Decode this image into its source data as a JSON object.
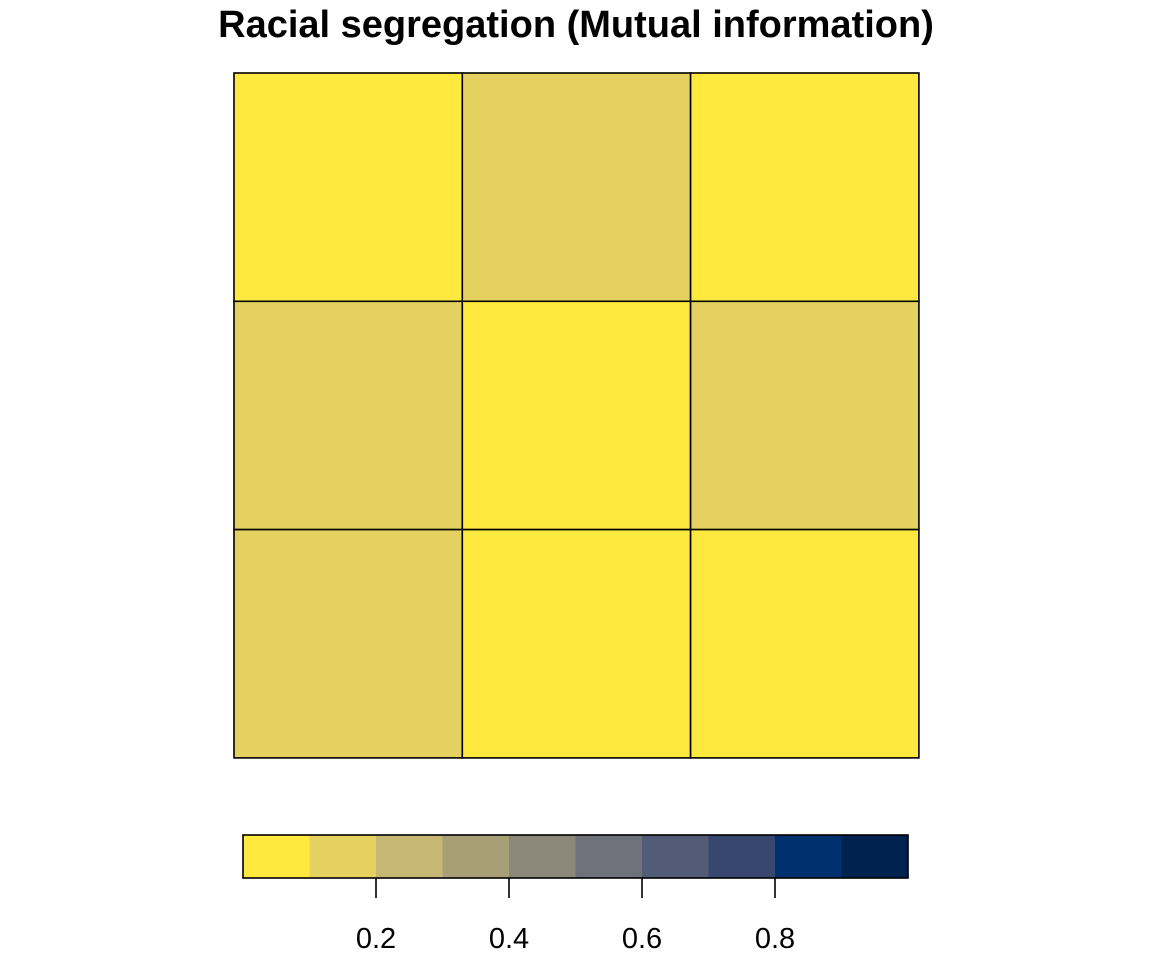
{
  "chart_data": {
    "type": "heatmap",
    "title": "Racial segregation (Mutual information)",
    "xlabel": "",
    "ylabel": "",
    "rows": 3,
    "cols": 3,
    "values": [
      [
        0.05,
        0.15,
        0.05
      ],
      [
        0.15,
        0.05,
        0.15
      ],
      [
        0.15,
        0.05,
        0.05
      ]
    ],
    "legend": {
      "placement": "bottom",
      "range": [
        0,
        1
      ],
      "breaks": [
        0,
        0.1,
        0.2,
        0.3,
        0.4,
        0.5,
        0.6,
        0.7,
        0.8,
        0.9,
        1.0
      ],
      "colors": [
        "#FFE93F",
        "#E4D160",
        "#C7B774",
        "#A89F77",
        "#8C8879",
        "#6F727B",
        "#535C77",
        "#37476D",
        "#00306E",
        "#00224E"
      ],
      "ticks": [
        0.2,
        0.4,
        0.6,
        0.8
      ],
      "tick_labels": [
        "0.2",
        "0.4",
        "0.6",
        "0.8"
      ]
    },
    "grid": true
  }
}
